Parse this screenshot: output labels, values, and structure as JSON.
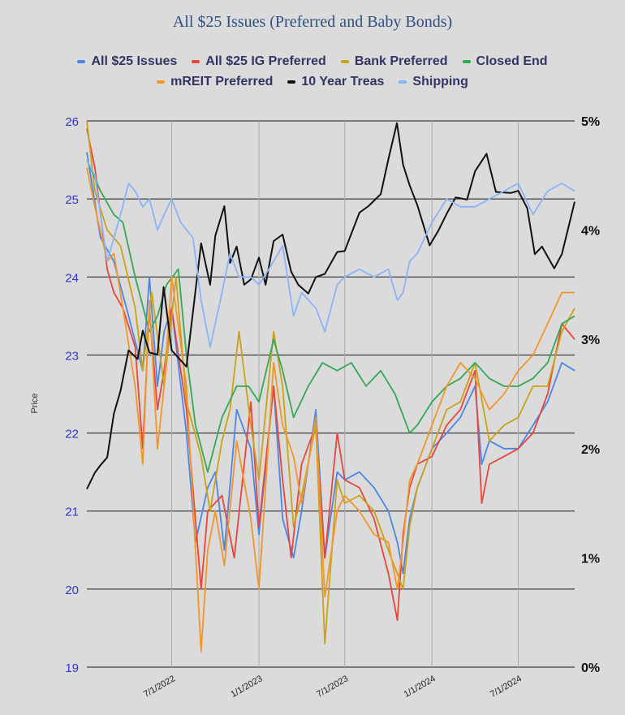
{
  "chart_data": {
    "type": "line",
    "title": "All $25 Issues (Preferred and Baby Bonds)",
    "ylabel": "Price",
    "ylim": [
      19,
      26
    ],
    "y_ticks": [
      "19",
      "20",
      "21",
      "22",
      "23",
      "24",
      "25",
      "26"
    ],
    "y2lim": [
      0,
      5
    ],
    "y2_ticks": [
      "0%",
      "1%",
      "2%",
      "3%",
      "4%",
      "5%"
    ],
    "xlim": [
      "2022-01-03",
      "2024-10-28"
    ],
    "x_ticks": [
      {
        "date": "2022-07-01",
        "label": "7/1/2022"
      },
      {
        "date": "2023-01-01",
        "label": "1/1/2023"
      },
      {
        "date": "2023-07-01",
        "label": "7/1/2023"
      },
      {
        "date": "2024-01-01",
        "label": "1/1/2024"
      },
      {
        "date": "2024-07-01",
        "label": "7/1/2024"
      }
    ],
    "grid": true,
    "legend_position": "top",
    "series": [
      {
        "name": "All $25 Issues",
        "color": "#4a86e8",
        "axis": "left",
        "x": [
          "2022-01-03",
          "2022-02-01",
          "2022-03-01",
          "2022-04-01",
          "2022-05-01",
          "2022-05-15",
          "2022-06-01",
          "2022-06-15",
          "2022-07-01",
          "2022-08-01",
          "2022-08-20",
          "2022-09-15",
          "2022-10-01",
          "2022-10-20",
          "2022-11-15",
          "2022-12-15",
          "2023-01-01",
          "2023-02-01",
          "2023-02-20",
          "2023-03-15",
          "2023-04-01",
          "2023-05-01",
          "2023-05-20",
          "2023-06-15",
          "2023-07-01",
          "2023-08-01",
          "2023-09-01",
          "2023-10-01",
          "2023-10-20",
          "2023-11-01",
          "2023-11-15",
          "2023-12-01",
          "2024-01-01",
          "2024-02-01",
          "2024-03-01",
          "2024-04-01",
          "2024-04-15",
          "2024-05-01",
          "2024-06-01",
          "2024-07-01",
          "2024-08-01",
          "2024-09-01",
          "2024-10-01",
          "2024-10-28"
        ],
        "values": [
          25.6,
          24.5,
          24.2,
          23.5,
          22.8,
          24.0,
          22.6,
          23.3,
          23.6,
          22.0,
          20.6,
          21.3,
          21.5,
          20.5,
          22.3,
          21.8,
          20.7,
          22.6,
          20.9,
          20.4,
          21.0,
          22.3,
          20.4,
          21.5,
          21.4,
          21.5,
          21.3,
          21.0,
          20.6,
          20.2,
          20.9,
          21.3,
          21.8,
          22.0,
          22.2,
          22.6,
          21.6,
          21.9,
          21.8,
          21.8,
          22.1,
          22.4,
          22.9,
          22.8
        ]
      },
      {
        "name": "All $25 IG Preferred",
        "color": "#e8453c",
        "axis": "left",
        "x": [
          "2022-01-03",
          "2022-01-20",
          "2022-02-15",
          "2022-03-01",
          "2022-03-20",
          "2022-04-15",
          "2022-05-01",
          "2022-05-15",
          "2022-06-01",
          "2022-06-15",
          "2022-07-01",
          "2022-08-01",
          "2022-09-01",
          "2022-09-15",
          "2022-10-15",
          "2022-11-10",
          "2022-12-15",
          "2023-01-01",
          "2023-02-01",
          "2023-02-20",
          "2023-03-10",
          "2023-04-01",
          "2023-05-01",
          "2023-05-20",
          "2023-06-15",
          "2023-07-01",
          "2023-08-01",
          "2023-09-01",
          "2023-10-01",
          "2023-10-20",
          "2023-11-01",
          "2023-11-15",
          "2023-12-01",
          "2024-01-01",
          "2024-02-01",
          "2024-03-01",
          "2024-04-01",
          "2024-04-15",
          "2024-05-01",
          "2024-06-01",
          "2024-07-01",
          "2024-08-01",
          "2024-09-01",
          "2024-10-01",
          "2024-10-28"
        ],
        "values": [
          25.9,
          25.4,
          24.1,
          23.8,
          23.6,
          23.1,
          21.8,
          23.6,
          22.3,
          22.8,
          23.6,
          22.3,
          20.0,
          21.0,
          21.2,
          20.4,
          22.4,
          20.8,
          22.6,
          21.4,
          20.4,
          21.6,
          22.1,
          20.4,
          22.0,
          21.4,
          21.3,
          20.9,
          20.2,
          19.6,
          20.7,
          21.3,
          21.6,
          21.7,
          22.1,
          22.3,
          22.8,
          21.1,
          21.6,
          21.7,
          21.8,
          22.0,
          22.5,
          23.4,
          23.2
        ]
      },
      {
        "name": "Bank Preferred",
        "color": "#c9a217",
        "axis": "left",
        "x": [
          "2022-01-03",
          "2022-01-20",
          "2022-02-15",
          "2022-03-15",
          "2022-04-15",
          "2022-05-01",
          "2022-05-20",
          "2022-06-15",
          "2022-07-10",
          "2022-08-01",
          "2022-09-01",
          "2022-09-20",
          "2022-10-15",
          "2022-11-01",
          "2022-11-20",
          "2022-12-15",
          "2023-01-01",
          "2023-02-01",
          "2023-02-20",
          "2023-03-15",
          "2023-04-01",
          "2023-05-01",
          "2023-05-20",
          "2023-06-15",
          "2023-07-01",
          "2023-08-01",
          "2023-09-01",
          "2023-10-01",
          "2023-11-01",
          "2023-11-15",
          "2023-12-01",
          "2024-01-01",
          "2024-02-01",
          "2024-03-01",
          "2024-04-01",
          "2024-05-01",
          "2024-06-01",
          "2024-07-01",
          "2024-08-01",
          "2024-09-01",
          "2024-10-01",
          "2024-10-28"
        ],
        "values": [
          26.0,
          25.1,
          24.6,
          24.4,
          23.6,
          22.8,
          23.8,
          22.6,
          24.0,
          22.4,
          21.7,
          21.0,
          21.9,
          22.3,
          23.3,
          22.1,
          21.4,
          23.3,
          22.6,
          20.8,
          21.2,
          22.1,
          19.3,
          21.4,
          21.1,
          21.2,
          21.0,
          20.5,
          20.0,
          20.8,
          21.3,
          21.8,
          22.3,
          22.4,
          22.9,
          21.9,
          22.1,
          22.2,
          22.6,
          22.6,
          23.3,
          23.6
        ]
      },
      {
        "name": "Closed End",
        "color": "#34a853",
        "axis": "left",
        "x": [
          "2022-01-03",
          "2022-02-01",
          "2022-03-01",
          "2022-03-20",
          "2022-04-15",
          "2022-05-15",
          "2022-06-01",
          "2022-06-20",
          "2022-07-15",
          "2022-08-01",
          "2022-08-20",
          "2022-09-15",
          "2022-10-15",
          "2022-11-15",
          "2022-12-10",
          "2023-01-01",
          "2023-02-01",
          "2023-02-20",
          "2023-03-15",
          "2023-04-15",
          "2023-05-15",
          "2023-06-15",
          "2023-07-15",
          "2023-08-15",
          "2023-09-15",
          "2023-10-15",
          "2023-11-15",
          "2023-12-01",
          "2024-01-01",
          "2024-02-01",
          "2024-03-01",
          "2024-04-01",
          "2024-05-01",
          "2024-06-01",
          "2024-07-01",
          "2024-08-01",
          "2024-09-01",
          "2024-10-01",
          "2024-10-28"
        ],
        "values": [
          25.5,
          25.1,
          24.8,
          24.7,
          24.0,
          23.3,
          23.5,
          23.9,
          24.1,
          23.0,
          22.1,
          21.5,
          22.2,
          22.6,
          22.6,
          22.4,
          23.2,
          22.8,
          22.2,
          22.6,
          22.9,
          22.8,
          22.9,
          22.6,
          22.8,
          22.5,
          22.0,
          22.1,
          22.4,
          22.6,
          22.7,
          22.9,
          22.7,
          22.6,
          22.6,
          22.7,
          22.9,
          23.4,
          23.5
        ]
      },
      {
        "name": "mREIT Preferred",
        "color": "#f39629",
        "axis": "left",
        "x": [
          "2022-01-03",
          "2022-01-20",
          "2022-02-15",
          "2022-03-01",
          "2022-03-20",
          "2022-04-15",
          "2022-05-01",
          "2022-05-15",
          "2022-06-01",
          "2022-06-15",
          "2022-07-01",
          "2022-08-01",
          "2022-09-01",
          "2022-09-15",
          "2022-10-01",
          "2022-10-20",
          "2022-11-15",
          "2022-12-15",
          "2023-01-01",
          "2023-02-01",
          "2023-02-20",
          "2023-03-15",
          "2023-04-01",
          "2023-05-01",
          "2023-05-20",
          "2023-06-15",
          "2023-07-01",
          "2023-08-01",
          "2023-09-01",
          "2023-10-01",
          "2023-10-20",
          "2023-11-01",
          "2023-11-15",
          "2023-12-01",
          "2024-01-01",
          "2024-02-01",
          "2024-03-01",
          "2024-04-01",
          "2024-05-01",
          "2024-06-01",
          "2024-07-01",
          "2024-08-01",
          "2024-09-01",
          "2024-10-01",
          "2024-10-28"
        ],
        "values": [
          25.4,
          24.9,
          24.2,
          24.3,
          23.6,
          22.6,
          21.6,
          23.7,
          21.8,
          22.6,
          24.0,
          22.6,
          19.2,
          20.5,
          21.0,
          20.3,
          21.9,
          20.9,
          20.0,
          22.9,
          22.1,
          21.7,
          21.1,
          22.2,
          19.9,
          21.0,
          21.2,
          21.0,
          20.7,
          20.6,
          20.0,
          20.6,
          21.4,
          21.6,
          22.1,
          22.6,
          22.9,
          22.7,
          22.3,
          22.5,
          22.8,
          23.0,
          23.4,
          23.8,
          23.8
        ]
      },
      {
        "name": "10 Year Treas",
        "color": "#111111",
        "axis": "right",
        "x": [
          "2022-01-03",
          "2022-01-20",
          "2022-02-01",
          "2022-02-15",
          "2022-03-01",
          "2022-03-15",
          "2022-04-01",
          "2022-04-20",
          "2022-05-01",
          "2022-05-15",
          "2022-06-01",
          "2022-06-14",
          "2022-07-01",
          "2022-08-01",
          "2022-09-01",
          "2022-09-20",
          "2022-10-01",
          "2022-10-20",
          "2022-11-01",
          "2022-11-15",
          "2022-12-01",
          "2022-12-15",
          "2023-01-01",
          "2023-01-15",
          "2023-02-01",
          "2023-02-20",
          "2023-03-10",
          "2023-03-25",
          "2023-04-15",
          "2023-05-01",
          "2023-05-20",
          "2023-06-15",
          "2023-07-01",
          "2023-08-01",
          "2023-08-20",
          "2023-09-15",
          "2023-10-01",
          "2023-10-19",
          "2023-11-01",
          "2023-11-15",
          "2023-12-01",
          "2023-12-27",
          "2024-01-15",
          "2024-02-01",
          "2024-02-20",
          "2024-03-15",
          "2024-04-01",
          "2024-04-25",
          "2024-05-15",
          "2024-06-15",
          "2024-07-01",
          "2024-07-20",
          "2024-08-05",
          "2024-08-20",
          "2024-09-15",
          "2024-10-01",
          "2024-10-28"
        ],
        "values": [
          1.63,
          1.78,
          1.85,
          1.92,
          2.32,
          2.53,
          2.9,
          2.82,
          3.08,
          2.88,
          2.86,
          3.48,
          2.9,
          2.75,
          3.88,
          3.5,
          3.95,
          4.22,
          3.7,
          3.85,
          3.5,
          3.55,
          3.75,
          3.5,
          3.9,
          3.96,
          3.62,
          3.5,
          3.42,
          3.57,
          3.6,
          3.8,
          3.81,
          4.16,
          4.22,
          4.33,
          4.65,
          4.98,
          4.6,
          4.41,
          4.23,
          3.86,
          4.0,
          4.15,
          4.3,
          4.28,
          4.54,
          4.7,
          4.35,
          4.34,
          4.36,
          4.2,
          3.78,
          3.85,
          3.65,
          3.78,
          4.26
        ]
      },
      {
        "name": "Shipping",
        "color": "#8ab4f8",
        "axis": "left",
        "x": [
          "2022-01-03",
          "2022-01-20",
          "2022-02-15",
          "2022-03-15",
          "2022-04-01",
          "2022-04-15",
          "2022-05-01",
          "2022-05-15",
          "2022-06-01",
          "2022-06-15",
          "2022-07-01",
          "2022-07-20",
          "2022-08-15",
          "2022-09-01",
          "2022-09-20",
          "2022-10-15",
          "2022-11-01",
          "2022-11-20",
          "2022-12-15",
          "2023-01-01",
          "2023-02-01",
          "2023-02-20",
          "2023-03-15",
          "2023-04-01",
          "2023-05-01",
          "2023-05-20",
          "2023-06-15",
          "2023-07-01",
          "2023-08-01",
          "2023-09-01",
          "2023-10-01",
          "2023-10-20",
          "2023-11-01",
          "2023-11-15",
          "2023-12-01",
          "2024-01-01",
          "2024-02-01",
          "2024-03-01",
          "2024-04-01",
          "2024-05-01",
          "2024-06-01",
          "2024-07-01",
          "2024-08-01",
          "2024-09-01",
          "2024-10-01",
          "2024-10-28"
        ],
        "values": [
          25.5,
          25.3,
          24.2,
          24.8,
          25.2,
          25.1,
          24.9,
          25.0,
          24.6,
          24.8,
          25.0,
          24.7,
          24.5,
          23.7,
          23.1,
          23.8,
          24.3,
          24.0,
          24.0,
          23.9,
          24.2,
          24.4,
          23.5,
          23.8,
          23.6,
          23.3,
          23.9,
          24.0,
          24.1,
          24.0,
          24.1,
          23.7,
          23.8,
          24.2,
          24.3,
          24.7,
          25.0,
          24.9,
          24.9,
          25.0,
          25.1,
          25.2,
          24.8,
          25.1,
          25.2,
          25.1
        ]
      }
    ]
  }
}
